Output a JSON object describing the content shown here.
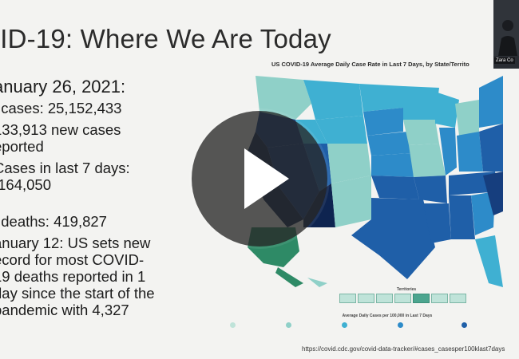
{
  "slide": {
    "title": "VID-19: Where We Are Today",
    "bullets": {
      "date": "anuary 26, 2021:",
      "cases": "l cases: 25,152,433",
      "new_cases_line1": "133,913 new cases",
      "new_cases_line2": "eported",
      "week_line1": "Cases in last 7 days:",
      "week_line2": ",164,050",
      "deaths": "l deaths: 419,827",
      "jan12_line1": "anuary 12: US sets new",
      "jan12_line2": "ecord for most COVID-",
      "jan12_line3": "19 deaths reported in 1",
      "jan12_line4": "day since the start of the",
      "jan12_line5": "pandemic with 4,327"
    },
    "map_title": "US COVID-19 Average Daily Case Rate in Last 7 Days, by State/Territo",
    "territories_label": "Territories",
    "legend_title": "Average Daily Cases per 100,000 in Last 7 Days",
    "url": "https://covid.cdc.gov/covid-data-tracker/#cases_casesper100klast7days"
  },
  "webcam": {
    "name": "Zara Co"
  },
  "video": {
    "play_icon": "play-icon"
  },
  "colors": {
    "light": "#8fd0c8",
    "mid_light": "#3fb0d2",
    "mid": "#2d8bc9",
    "dark": "#1f5fa8",
    "darker": "#163e7e",
    "darkest": "#0e2450"
  }
}
